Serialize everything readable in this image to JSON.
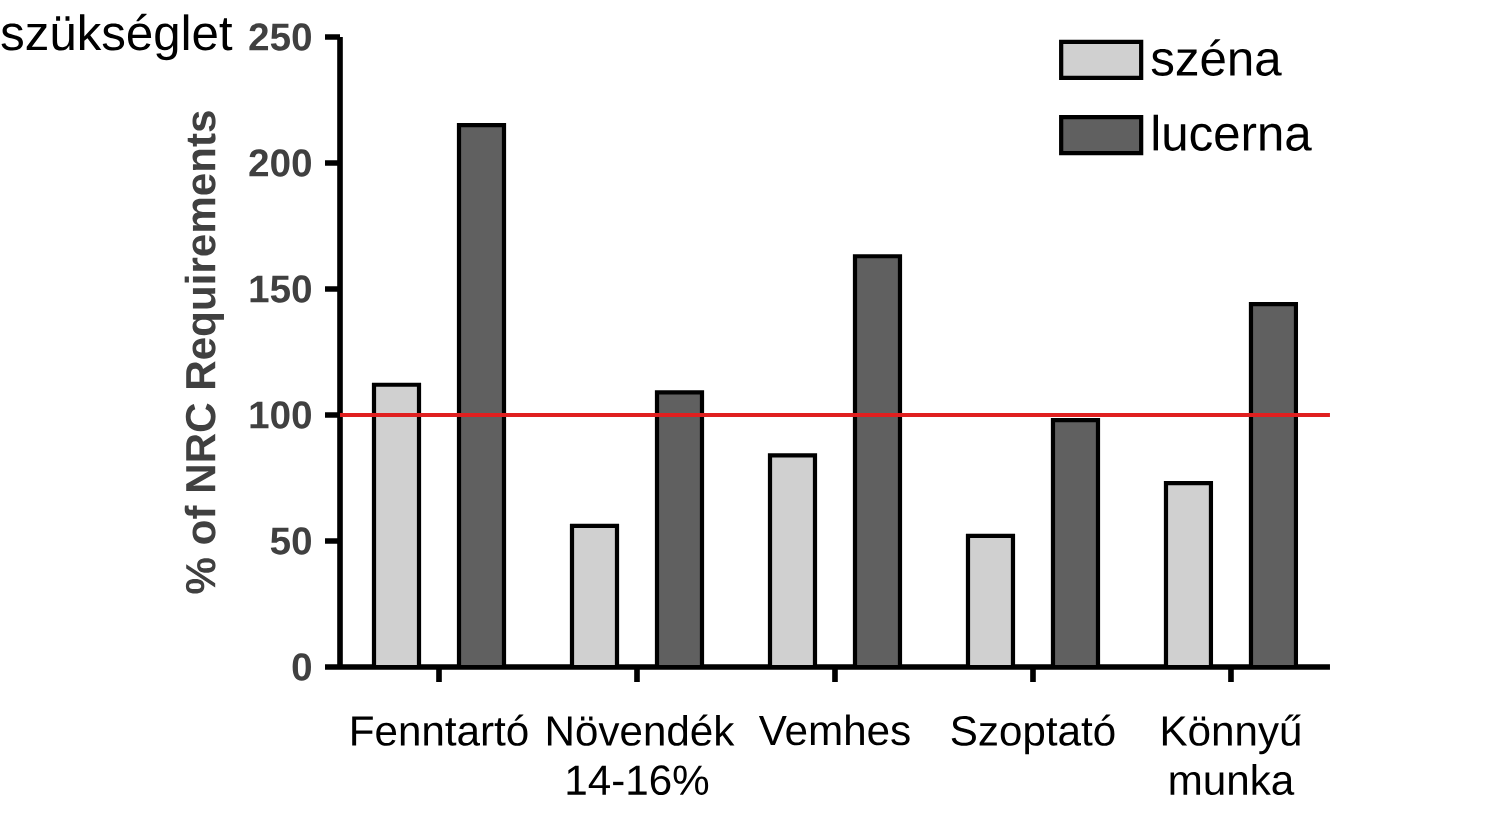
{
  "chart_data": {
    "type": "bar",
    "ylabel": "% of NRC Requirements",
    "annotations": [
      "szükséglet"
    ],
    "categories": [
      "Fenntartó",
      "Növendék 14-16%",
      "Vemhes",
      "Szoptató",
      "Könnyű munka"
    ],
    "series": [
      {
        "name": "széna",
        "color": "#d0d0d0",
        "values": [
          112,
          56,
          84,
          52,
          73
        ]
      },
      {
        "name": "lucerna",
        "color": "#606060",
        "values": [
          215,
          109,
          163,
          98,
          144
        ]
      }
    ],
    "ylim": [
      0,
      250
    ],
    "yticks": [
      0,
      50,
      100,
      150,
      200,
      250
    ],
    "ref_lines": [
      {
        "axis": "y",
        "value": 100,
        "color": "#e02020"
      }
    ],
    "legend": "top right",
    "grid": false
  }
}
